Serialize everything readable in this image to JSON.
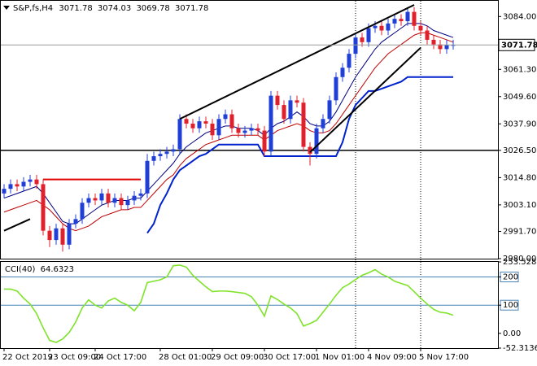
{
  "chart_data": [
    {
      "type": "candlestick",
      "title": "S&P,fs,H4",
      "categories": [
        "22 Oct 2019",
        null,
        null,
        null,
        null,
        null,
        null,
        "23 Oct 09:00",
        null,
        null,
        null,
        null,
        null,
        null,
        "24 Oct 17:00",
        null,
        null,
        null,
        null,
        null,
        null,
        null,
        null,
        null,
        "28 Oct 01:00",
        null,
        null,
        null,
        null,
        null,
        null,
        null,
        "29 Oct 09:00",
        null,
        null,
        null,
        null,
        null,
        null,
        null,
        "30 Oct 17:00",
        null,
        null,
        null,
        null,
        null,
        null,
        null,
        "1 Nov 01:00",
        null,
        null,
        null,
        null,
        null,
        null,
        null,
        "4 Nov 09:00",
        null,
        null,
        null,
        null,
        null,
        null,
        null,
        "5 Nov 17:00",
        null,
        null,
        null,
        null,
        null
      ],
      "open": [
        3008,
        3010,
        3012,
        3011,
        3013,
        3014,
        3012,
        2992,
        2988,
        2993,
        2986,
        2995,
        2997,
        3004,
        3006,
        3005,
        3008,
        3004,
        3006,
        3003,
        3005,
        3007,
        3008,
        3022,
        3024,
        3025,
        3026,
        3027,
        3040,
        3038,
        3036,
        3039,
        3038,
        3033,
        3040,
        3042,
        3036,
        3034,
        3035,
        3036,
        3035,
        3026,
        3050,
        3046,
        3040,
        3048,
        3047,
        3028,
        3025,
        3036,
        3040,
        3048,
        3058,
        3062,
        3068,
        3075,
        3073,
        3079,
        3080,
        3078,
        3081,
        3083,
        3082,
        3086,
        3080,
        3078,
        3074,
        3072,
        3070,
        3071.78
      ],
      "high": [
        3012,
        3014,
        3014,
        3015,
        3016,
        3016,
        3014,
        2994,
        2995,
        2995,
        2997,
        2999,
        3006,
        3008,
        3008,
        3010,
        3010,
        3008,
        3008,
        3007,
        3009,
        3010,
        3025,
        3026,
        3027,
        3028,
        3029,
        3042,
        3042,
        3040,
        3041,
        3041,
        3040,
        3042,
        3044,
        3044,
        3038,
        3037,
        3038,
        3038,
        3037,
        3052,
        3052,
        3048,
        3050,
        3050,
        3049,
        3030,
        3038,
        3042,
        3050,
        3060,
        3064,
        3070,
        3077,
        3077,
        3081,
        3082,
        3082,
        3083,
        3085,
        3085,
        3088,
        3088,
        3082,
        3080,
        3076,
        3074,
        3074,
        3074.03
      ],
      "low": [
        3006,
        3008,
        3009,
        3009,
        3011,
        3010,
        2990,
        2985,
        2986,
        2983,
        2984,
        2993,
        2995,
        3002,
        3003,
        3003,
        3002,
        3002,
        3001,
        3001,
        3003,
        3005,
        3006,
        3020,
        3022,
        3023,
        3024,
        3025,
        3036,
        3034,
        3034,
        3036,
        3031,
        3031,
        3038,
        3034,
        3032,
        3032,
        3033,
        3033,
        3024,
        3024,
        3044,
        3038,
        3038,
        3045,
        3026,
        3020,
        3023,
        3034,
        3038,
        3046,
        3056,
        3060,
        3066,
        3071,
        3071,
        3077,
        3076,
        3076,
        3079,
        3080,
        3080,
        3078,
        3076,
        3072,
        3070,
        3068,
        3068,
        3069.78
      ],
      "close": [
        3010,
        3012,
        3011,
        3013,
        3014,
        3012,
        2992,
        2988,
        2993,
        2986,
        2995,
        2997,
        3004,
        3006,
        3005,
        3008,
        3004,
        3006,
        3003,
        3005,
        3007,
        3008,
        3022,
        3024,
        3025,
        3026,
        3027,
        3040,
        3038,
        3036,
        3039,
        3038,
        3033,
        3040,
        3042,
        3036,
        3034,
        3035,
        3036,
        3035,
        3026,
        3050,
        3046,
        3040,
        3048,
        3047,
        3028,
        3025,
        3036,
        3040,
        3048,
        3058,
        3062,
        3068,
        3075,
        3073,
        3079,
        3080,
        3078,
        3081,
        3083,
        3082,
        3086,
        3080,
        3078,
        3074,
        3072,
        3070,
        3071.78,
        3071.78
      ],
      "up_color": "#1f3fd6",
      "down_color": "#e0202a",
      "lines": [
        {
          "color": "#000080",
          "width": 1,
          "values": [
            3006,
            3007,
            3008,
            3009,
            3010,
            3011,
            3008,
            3004,
            3000,
            2996,
            2995,
            2995,
            2997,
            2999,
            3001,
            3003,
            3004,
            3005,
            3005,
            3005,
            3006,
            3006,
            3009,
            3012,
            3015,
            3018,
            3021,
            3025,
            3028,
            3030,
            3032,
            3034,
            3035,
            3036,
            3037,
            3037,
            3036,
            3036,
            3036,
            3035,
            3033,
            3036,
            3038,
            3039,
            3041,
            3043,
            3041,
            3038,
            3037,
            3037,
            3039,
            3043,
            3048,
            3053,
            3058,
            3062,
            3066,
            3070,
            3073,
            3075,
            3077,
            3079,
            3081,
            3081,
            3081,
            3080,
            3078,
            3077,
            3076,
            3075
          ]
        },
        {
          "color": "#c00000",
          "width": 1,
          "values": [
            3000,
            3001,
            3002,
            3003,
            3004,
            3005,
            3003,
            3001,
            2998,
            2995,
            2993,
            2992,
            2993,
            2994,
            2996,
            2998,
            2999,
            3000,
            3001,
            3001,
            3002,
            3002,
            3005,
            3008,
            3011,
            3014,
            3016,
            3020,
            3023,
            3025,
            3027,
            3029,
            3030,
            3031,
            3032,
            3033,
            3033,
            3033,
            3033,
            3033,
            3031,
            3033,
            3035,
            3036,
            3037,
            3038,
            3037,
            3035,
            3034,
            3034,
            3035,
            3038,
            3042,
            3046,
            3050,
            3054,
            3058,
            3062,
            3065,
            3068,
            3070,
            3072,
            3074,
            3076,
            3077,
            3077,
            3076,
            3075,
            3074,
            3073
          ]
        },
        {
          "color": "#0022cc",
          "width": 2,
          "values": [
            null,
            null,
            null,
            null,
            null,
            null,
            null,
            null,
            null,
            null,
            null,
            null,
            null,
            null,
            null,
            null,
            null,
            null,
            null,
            null,
            null,
            null,
            2991,
            2995,
            3003,
            3008,
            3014,
            3018,
            3020,
            3022,
            3024,
            3025,
            3027,
            3029,
            3029,
            3029,
            3029,
            3029,
            3029,
            3029,
            3024,
            3024,
            3024,
            3024,
            3024,
            3024,
            3024,
            3024,
            3024,
            3024,
            3024,
            3024,
            3030,
            3040,
            3046,
            3049,
            3052,
            3052,
            3053,
            3054,
            3055,
            3056,
            3058,
            3058,
            3058,
            3058,
            3058,
            3058,
            3058,
            3058
          ]
        }
      ],
      "hlines": [
        {
          "y": 3026.5,
          "color": "#000000"
        }
      ],
      "segments": [
        {
          "x": [
            27,
            63
          ],
          "y": [
            3040,
            3089
          ],
          "color": "#000000"
        },
        {
          "x": [
            47,
            64
          ],
          "y": [
            3025.7,
            3070.6
          ],
          "color": "#000000"
        },
        {
          "x": [
            0,
            4
          ],
          "y": [
            2992,
            2997
          ],
          "color": "#000000"
        },
        {
          "x": [
            6,
            21
          ],
          "y": [
            3014,
            3014
          ],
          "color": "#e00000"
        }
      ],
      "vlines": [
        54,
        64
      ],
      "last_price_line": true,
      "ylim": [
        2980,
        3090.4
      ],
      "yticks": [
        {
          "value": 3084,
          "label": "3084.00"
        },
        {
          "value": 3061.3,
          "label": "3061.30"
        },
        {
          "value": 3049.6,
          "label": "3049.60"
        },
        {
          "value": 3037.9,
          "label": "3037.90"
        },
        {
          "value": 3026.5,
          "label": "3026.50"
        },
        {
          "value": 3014.8,
          "label": "3014.80"
        },
        {
          "value": 3003.1,
          "label": "3003.10"
        },
        {
          "value": 2991.7,
          "label": "2991.70"
        },
        {
          "value": 2980,
          "label": "2980.00"
        }
      ]
    },
    {
      "type": "line",
      "title": "CCI(40)",
      "color": "#7fe32a",
      "values": [
        157,
        157,
        150,
        125,
        104,
        70,
        20,
        -25,
        -32,
        -20,
        3,
        40,
        90,
        119,
        100,
        90,
        115,
        125,
        110,
        100,
        80,
        110,
        180,
        185,
        190,
        200,
        240,
        242,
        235,
        206,
        185,
        165,
        148,
        150,
        150,
        148,
        145,
        142,
        130,
        100,
        61,
        133,
        120,
        104,
        90,
        70,
        26,
        35,
        46,
        75,
        104,
        135,
        162,
        175,
        191,
        206,
        215,
        226,
        210,
        200,
        185,
        177,
        170,
        148,
        125,
        104,
        85,
        75,
        72,
        64.6323
      ],
      "levels": [
        200,
        100
      ],
      "level_color": "#4682b4",
      "ylim": [
        -52.3136,
        253.5289
      ],
      "yticks": [
        253.5289,
        200,
        100,
        {
          "value": 0,
          "label": "0.00"
        },
        -52.3136
      ]
    }
  ]
}
